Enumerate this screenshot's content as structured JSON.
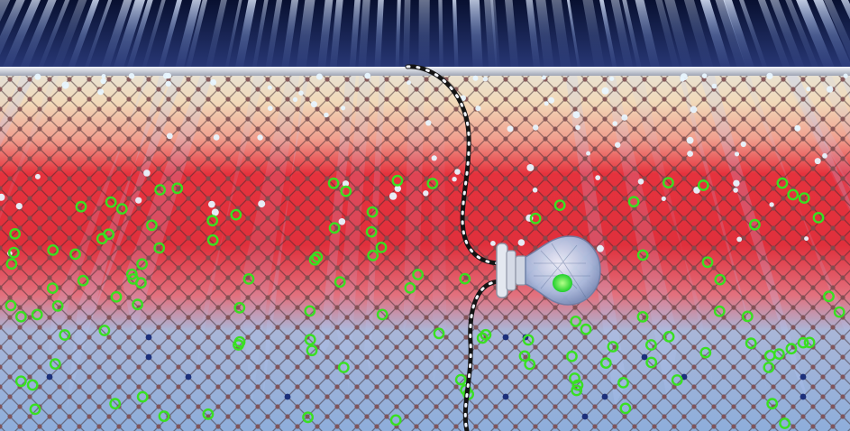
{
  "scene": {
    "description_name": "semiconductor-lattice-illustration",
    "colors": {
      "sky_dark": "#0b1440",
      "beam": "#a9c8ff",
      "surface_plate": "#c9ccd6",
      "warm_band": "#e8303c",
      "cool_band": "#8fb0dc",
      "lattice_atom": "#7a4a4a",
      "blue_atom": "#1c2f7a",
      "green_ring": "#39e021",
      "white_dot": "#e8f6ff",
      "probe_cable": "#1a1a1a",
      "probe_bulb": "#c7d6ee",
      "probe_core": "#2fe030"
    },
    "icons": [
      "light-beam",
      "lattice",
      "green-ring-marker",
      "white-particle",
      "probe-bulb",
      "probe-cable"
    ]
  }
}
